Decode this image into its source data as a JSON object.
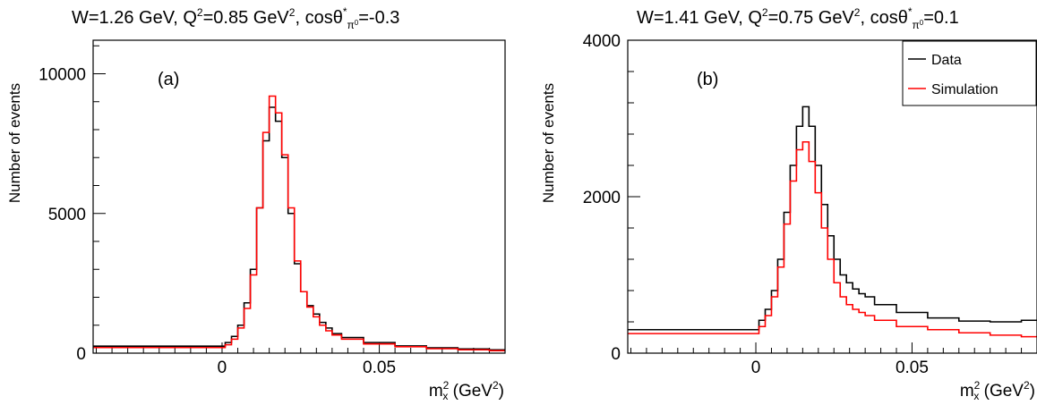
{
  "chart_data": [
    {
      "type": "line",
      "panel_label": "(a)",
      "title": {
        "pre": "W=1.26 GeV, Q",
        "sup1": "2",
        "mid": "=0.85 GeV",
        "sup2": "2",
        "post1": ", cos",
        "theta": "θ",
        "theta_sup": "*",
        "theta_sub": "π",
        "theta_subsup": "0",
        "post2": "=-0.3"
      },
      "xlabel": {
        "pre": "m",
        "sub": "x",
        "sup": "2",
        "post": " (GeV",
        "sup2": "2",
        "end": ")"
      },
      "ylabel": "Number of events",
      "xlim": [
        -0.041,
        0.09
      ],
      "ylim": [
        0,
        11200
      ],
      "xticks": [
        {
          "v": 0,
          "label": "0"
        },
        {
          "v": 0.05,
          "label": "0.05"
        }
      ],
      "yticks": [
        {
          "v": 0,
          "label": "0"
        },
        {
          "v": 5000,
          "label": "5000"
        },
        {
          "v": 10000,
          "label": "10000"
        }
      ],
      "x": [
        0,
        0.002,
        0.004,
        0.006,
        0.008,
        0.01,
        0.012,
        0.014,
        0.016,
        0.018,
        0.02,
        0.022,
        0.024,
        0.026,
        0.028,
        0.03,
        0.032,
        0.034,
        0.036,
        0.04,
        0.05,
        0.06,
        0.07,
        0.08,
        0.09
      ],
      "series": [
        {
          "name": "Data",
          "color": "#000000",
          "values": [
            250,
            380,
            600,
            1000,
            1800,
            3000,
            5200,
            7600,
            8800,
            8300,
            7000,
            5000,
            3200,
            2200,
            1700,
            1400,
            1100,
            900,
            700,
            560,
            380,
            260,
            190,
            150,
            120
          ]
        },
        {
          "name": "Simulation",
          "color": "#ff0000",
          "values": [
            200,
            300,
            500,
            900,
            1600,
            2800,
            5200,
            7900,
            9200,
            8600,
            7100,
            5200,
            3300,
            2200,
            1650,
            1300,
            1000,
            800,
            650,
            500,
            330,
            230,
            160,
            120,
            90
          ]
        }
      ],
      "grid": false,
      "legend": "none"
    },
    {
      "type": "line",
      "panel_label": "(b)",
      "title": {
        "pre": "W=1.41 GeV, Q",
        "sup1": "2",
        "mid": "=0.75 GeV",
        "sup2": "2",
        "post1": ", cos",
        "theta": "θ",
        "theta_sup": "*",
        "theta_sub": "π",
        "theta_subsup": "0",
        "post2": "=0.1"
      },
      "xlabel": {
        "pre": "m",
        "sub": "x",
        "sup": "2",
        "post": " (GeV",
        "sup2": "2",
        "end": ")"
      },
      "ylabel": "Number of events",
      "xlim": [
        -0.041,
        0.09
      ],
      "ylim": [
        0,
        4000
      ],
      "xticks": [
        {
          "v": 0,
          "label": "0"
        },
        {
          "v": 0.05,
          "label": "0.05"
        }
      ],
      "yticks": [
        {
          "v": 0,
          "label": "0"
        },
        {
          "v": 2000,
          "label": "2000"
        },
        {
          "v": 4000,
          "label": "4000"
        }
      ],
      "x": [
        0,
        0.002,
        0.004,
        0.006,
        0.008,
        0.01,
        0.012,
        0.014,
        0.016,
        0.018,
        0.02,
        0.022,
        0.024,
        0.026,
        0.028,
        0.03,
        0.032,
        0.034,
        0.036,
        0.04,
        0.05,
        0.06,
        0.07,
        0.08,
        0.09
      ],
      "series": [
        {
          "name": "Data",
          "color": "#000000",
          "values": [
            300,
            420,
            560,
            800,
            1200,
            1800,
            2400,
            2900,
            3150,
            2900,
            2400,
            1900,
            1500,
            1200,
            1000,
            900,
            820,
            760,
            720,
            620,
            520,
            450,
            410,
            400,
            420
          ]
        },
        {
          "name": "Simulation",
          "color": "#ff0000",
          "values": [
            250,
            340,
            480,
            720,
            1100,
            1650,
            2200,
            2600,
            2700,
            2450,
            2050,
            1600,
            1200,
            900,
            720,
            620,
            560,
            520,
            480,
            420,
            340,
            300,
            260,
            230,
            210
          ]
        }
      ],
      "grid": false,
      "legend": "top-right"
    }
  ]
}
